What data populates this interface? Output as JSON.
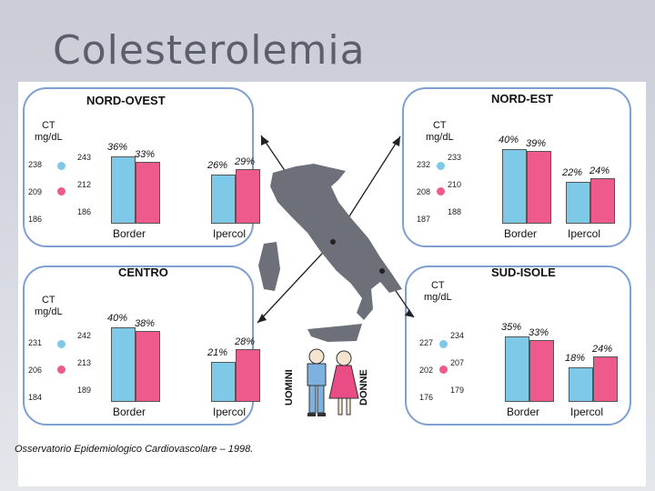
{
  "title": "Colesterolemia",
  "footer": "Osservatorio Epidemiologico Cardiovascolare – 1998.",
  "legend": {
    "men": "UOMINI",
    "women": "DONNE"
  },
  "colors": {
    "men": "#7ec8e8",
    "women": "#ee5a8c",
    "border": "#7e9fd0"
  },
  "regions": {
    "nw": {
      "name": "NORD-OVEST",
      "ct": "CT\nmg/dL",
      "men_vals": [
        "238",
        "209",
        "186"
      ],
      "women_vals": [
        "243",
        "212",
        "186"
      ],
      "border_pct": [
        "36%",
        "33%"
      ],
      "iper_pct": [
        "26%",
        "29%"
      ],
      "border_label": "Border",
      "iper_label": "Ipercol"
    },
    "ne": {
      "name": "NORD-EST",
      "ct": "CT\nmg/dL",
      "men_vals": [
        "232",
        "208",
        "187"
      ],
      "women_vals": [
        "233",
        "210",
        "188"
      ],
      "border_pct": [
        "40%",
        "39%"
      ],
      "iper_pct": [
        "22%",
        "24%"
      ],
      "border_label": "Border",
      "iper_label": "Ipercol"
    },
    "c": {
      "name": "CENTRO",
      "ct": "CT\nmg/dL",
      "men_vals": [
        "231",
        "206",
        "184"
      ],
      "women_vals": [
        "242",
        "213",
        "189"
      ],
      "border_pct": [
        "40%",
        "38%"
      ],
      "iper_pct": [
        "21%",
        "28%"
      ],
      "border_label": "Border",
      "iper_label": "Ipercol"
    },
    "s": {
      "name": "SUD-ISOLE",
      "ct": "CT\nmg/dL",
      "men_vals": [
        "227",
        "202",
        "176"
      ],
      "women_vals": [
        "234",
        "207",
        "179"
      ],
      "border_pct": [
        "35%",
        "33%"
      ],
      "iper_pct": [
        "18%",
        "24%"
      ],
      "border_label": "Border",
      "iper_label": "Ipercol"
    }
  },
  "chart_data": [
    {
      "type": "bar",
      "title": "NORD-OVEST",
      "categories": [
        "Border",
        "Ipercol"
      ],
      "series": [
        {
          "name": "UOMINI",
          "values": [
            36,
            26
          ]
        },
        {
          "name": "DONNE",
          "values": [
            33,
            29
          ]
        }
      ]
    },
    {
      "type": "bar",
      "title": "NORD-EST",
      "categories": [
        "Border",
        "Ipercol"
      ],
      "series": [
        {
          "name": "UOMINI",
          "values": [
            40,
            22
          ]
        },
        {
          "name": "DONNE",
          "values": [
            39,
            24
          ]
        }
      ]
    },
    {
      "type": "bar",
      "title": "CENTRO",
      "categories": [
        "Border",
        "Ipercol"
      ],
      "series": [
        {
          "name": "UOMINI",
          "values": [
            40,
            21
          ]
        },
        {
          "name": "DONNE",
          "values": [
            38,
            28
          ]
        }
      ]
    },
    {
      "type": "bar",
      "title": "SUD-ISOLE",
      "categories": [
        "Border",
        "Ipercol"
      ],
      "series": [
        {
          "name": "UOMINI",
          "values": [
            35,
            18
          ]
        },
        {
          "name": "DONNE",
          "values": [
            33,
            24
          ]
        }
      ]
    }
  ]
}
